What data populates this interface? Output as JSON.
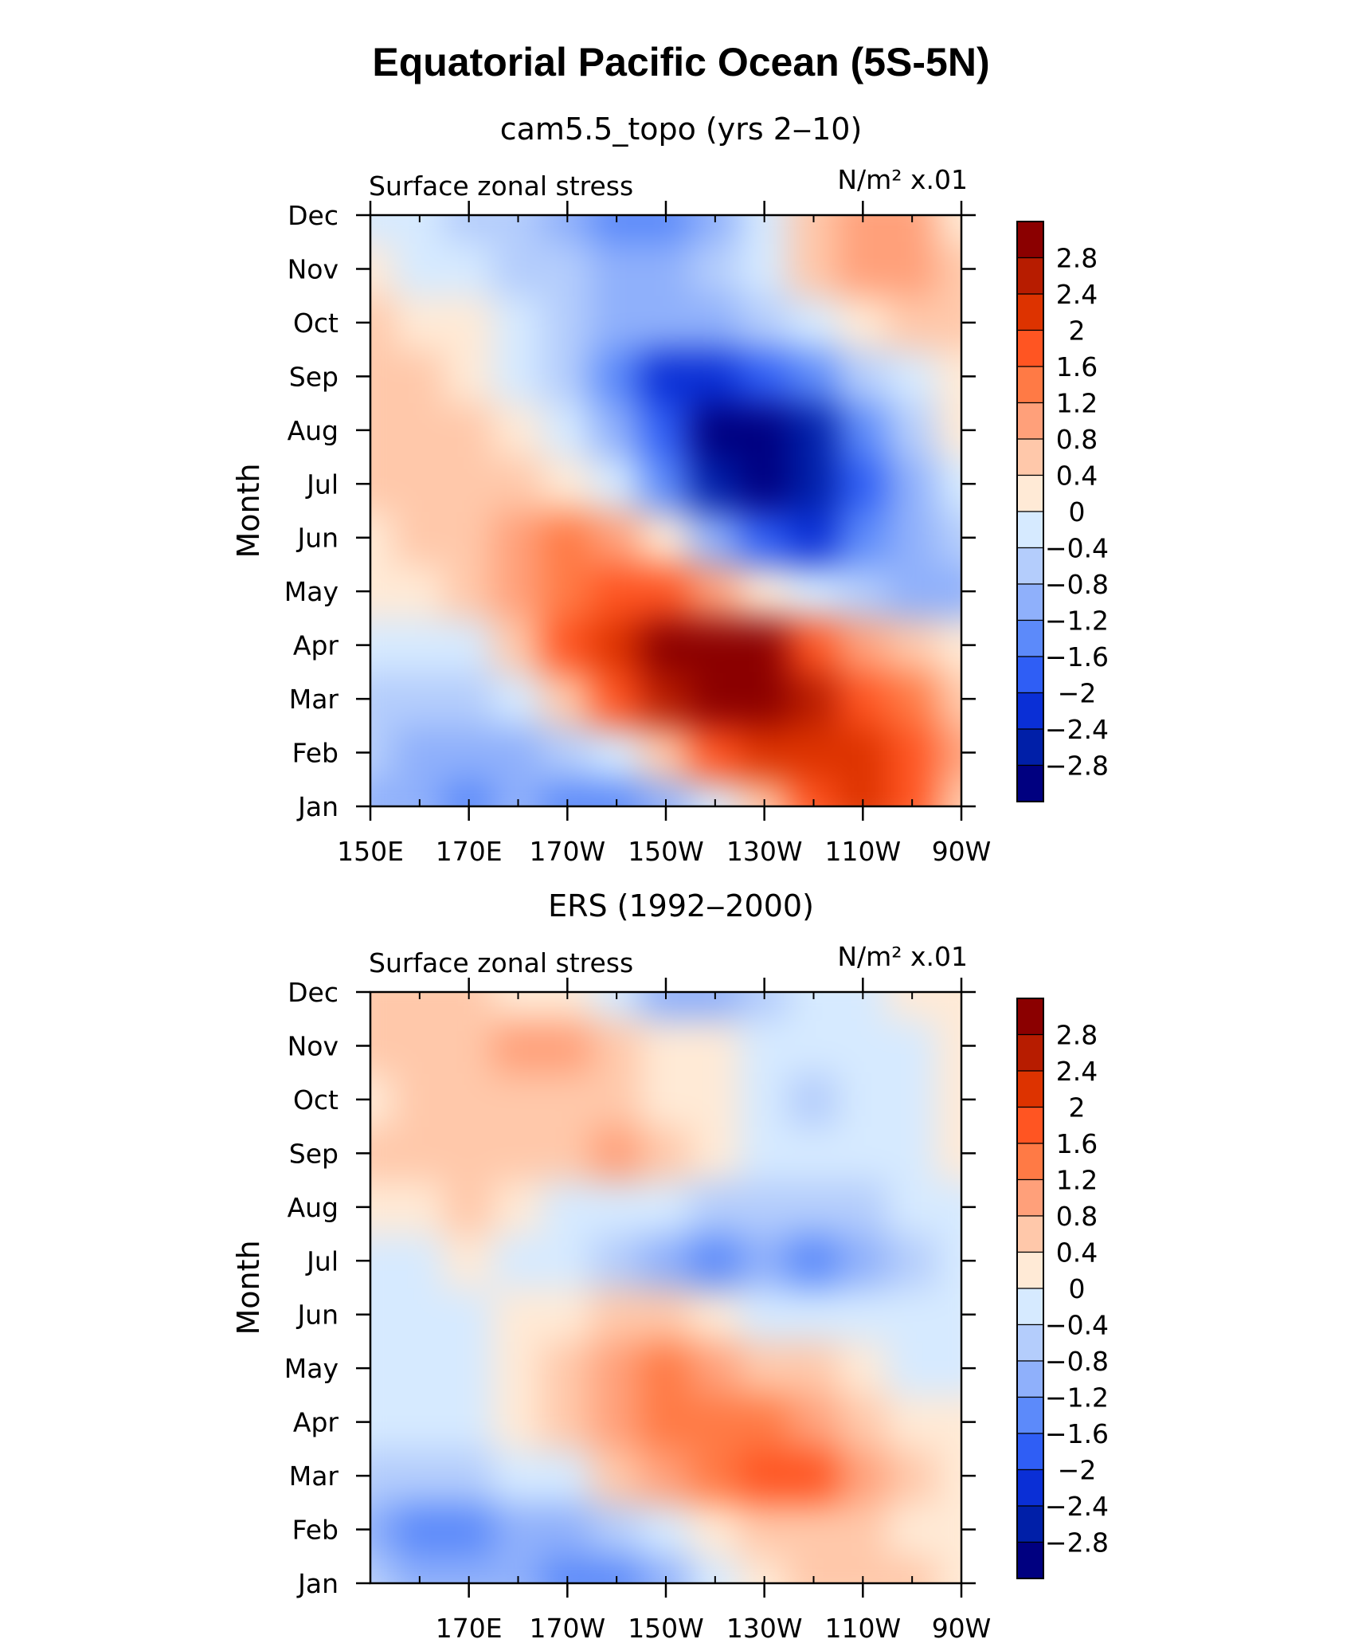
{
  "title": "Equatorial Pacific Ocean (5S-5N)",
  "colorbar": {
    "labels": [
      "2.8",
      "2.4",
      "2",
      "1.6",
      "1.2",
      "0.8",
      "0.4",
      "0",
      "−0.4",
      "−0.8",
      "−1.2",
      "−1.6",
      "−2",
      "−2.4",
      "−2.8"
    ],
    "colors": [
      "#8b0000",
      "#b71c00",
      "#dd3300",
      "#ff5522",
      "#ff7a45",
      "#ffa07a",
      "#ffc8aa",
      "#ffead6",
      "#d6eaff",
      "#b4cdfc",
      "#8fb0fb",
      "#5c8afa",
      "#2f5ef5",
      "#0a2fd6",
      "#001fa8",
      "#000080"
    ]
  },
  "chart_data": [
    {
      "type": "heatmap",
      "title": "cam5.5_topo (yrs 2‒10)",
      "left_label": "Surface zonal stress",
      "right_label": "N/m² x.01",
      "ylabel": "Month",
      "y_ticks": [
        "Jan",
        "Feb",
        "Mar",
        "Apr",
        "May",
        "Jun",
        "Jul",
        "Aug",
        "Sep",
        "Oct",
        "Nov",
        "Dec"
      ],
      "x_ticks": [
        "150E",
        "170E",
        "170W",
        "150W",
        "130W",
        "110W",
        "90W"
      ],
      "x": [
        "150E",
        "160E",
        "170E",
        "180",
        "170W",
        "160W",
        "150W",
        "140W",
        "130W",
        "120W",
        "110W",
        "100W",
        "90W"
      ],
      "y": [
        "Jan",
        "Feb",
        "Mar",
        "Apr",
        "May",
        "Jun",
        "Jul",
        "Aug",
        "Sep",
        "Oct",
        "Nov",
        "Dec"
      ],
      "values": [
        [
          -1.0,
          -1.2,
          -1.6,
          -1.2,
          -1.6,
          -1.6,
          -1.2,
          -0.4,
          0.4,
          1.6,
          2.0,
          1.6,
          0.4
        ],
        [
          -0.8,
          -1.0,
          -1.0,
          -1.2,
          -0.8,
          -0.4,
          0.4,
          1.6,
          2.0,
          2.2,
          2.2,
          1.6,
          0.8
        ],
        [
          -0.6,
          -0.6,
          -0.8,
          -0.4,
          0.4,
          1.6,
          2.4,
          2.8,
          3.0,
          2.6,
          1.6,
          1.2,
          0.4
        ],
        [
          -0.2,
          -0.2,
          -0.2,
          0.4,
          1.6,
          2.0,
          2.8,
          3.0,
          2.8,
          1.6,
          0.8,
          0.6,
          0.0
        ],
        [
          0.0,
          0.2,
          0.4,
          0.8,
          1.2,
          1.6,
          1.6,
          0.8,
          0.0,
          -0.4,
          -0.8,
          -1.2,
          -1.0
        ],
        [
          0.2,
          0.4,
          0.6,
          0.8,
          1.2,
          0.8,
          0.0,
          -1.2,
          -2.0,
          -2.4,
          -1.6,
          -1.2,
          -0.8
        ],
        [
          0.4,
          0.6,
          0.6,
          0.4,
          0.0,
          -0.4,
          -1.6,
          -2.8,
          -3.2,
          -2.8,
          -2.0,
          -1.2,
          -0.4
        ],
        [
          0.6,
          0.6,
          0.4,
          0.0,
          -0.4,
          -1.2,
          -2.0,
          -3.0,
          -3.2,
          -2.8,
          -1.6,
          -0.8,
          0.0
        ],
        [
          0.6,
          0.4,
          0.2,
          -0.4,
          -0.8,
          -1.6,
          -2.4,
          -2.4,
          -2.0,
          -1.6,
          -0.8,
          -0.2,
          0.2
        ],
        [
          0.4,
          0.2,
          0.0,
          -0.4,
          -0.8,
          -1.2,
          -1.2,
          -1.2,
          -0.8,
          -0.4,
          0.0,
          0.4,
          0.4
        ],
        [
          0.0,
          -0.2,
          -0.4,
          -0.6,
          -0.8,
          -1.2,
          -1.2,
          -0.8,
          -0.4,
          0.4,
          0.8,
          0.8,
          0.4
        ],
        [
          -0.2,
          -0.4,
          -0.6,
          -0.8,
          -1.2,
          -1.6,
          -1.6,
          -1.2,
          -0.4,
          0.4,
          1.0,
          0.8,
          0.2
        ]
      ]
    },
    {
      "type": "heatmap",
      "title": "ERS (1992‒2000)",
      "left_label": "Surface zonal stress",
      "right_label": "N/m² x.01",
      "ylabel": "Month",
      "y_ticks": [
        "Jan",
        "Feb",
        "Mar",
        "Apr",
        "May",
        "Jun",
        "Jul",
        "Aug",
        "Sep",
        "Oct",
        "Nov",
        "Dec"
      ],
      "x_ticks": [
        "170E",
        "170W",
        "150W",
        "130W",
        "110W",
        "90W"
      ],
      "x": [
        "150E",
        "160E",
        "170E",
        "180",
        "170W",
        "160W",
        "150W",
        "140W",
        "130W",
        "120W",
        "110W",
        "100W",
        "90W"
      ],
      "y": [
        "Jan",
        "Feb",
        "Mar",
        "Apr",
        "May",
        "Jun",
        "Jul",
        "Aug",
        "Sep",
        "Oct",
        "Nov",
        "Dec"
      ],
      "values": [
        [
          -0.8,
          -1.0,
          -1.2,
          -1.2,
          -1.6,
          -1.4,
          -1.0,
          -0.4,
          0.0,
          0.4,
          0.4,
          0.4,
          0.0
        ],
        [
          -1.2,
          -1.4,
          -1.6,
          -1.2,
          -1.2,
          -0.8,
          -0.4,
          0.0,
          0.4,
          0.4,
          0.4,
          0.2,
          0.0
        ],
        [
          -0.6,
          -0.8,
          -0.6,
          -0.4,
          -0.2,
          0.4,
          0.8,
          1.2,
          1.6,
          1.6,
          0.8,
          0.4,
          0.0
        ],
        [
          -0.2,
          -0.2,
          -0.2,
          0.0,
          0.4,
          0.8,
          1.2,
          1.4,
          1.2,
          0.8,
          0.4,
          0.2,
          0.0
        ],
        [
          -0.2,
          -0.2,
          -0.2,
          0.0,
          0.4,
          0.8,
          1.2,
          1.0,
          0.6,
          0.4,
          0.0,
          -0.2,
          -0.2
        ],
        [
          -0.4,
          -0.2,
          -0.2,
          0.0,
          0.2,
          0.4,
          0.4,
          0.0,
          -0.2,
          -0.4,
          -0.4,
          -0.4,
          -0.2
        ],
        [
          -0.2,
          -0.2,
          0.0,
          -0.2,
          -0.4,
          -0.8,
          -1.2,
          -1.6,
          -1.2,
          -1.6,
          -1.2,
          -0.8,
          -0.4
        ],
        [
          0.2,
          0.2,
          0.4,
          0.0,
          -0.2,
          -0.4,
          -0.4,
          -0.8,
          -0.8,
          -0.8,
          -0.6,
          -0.4,
          -0.2
        ],
        [
          0.4,
          0.4,
          0.4,
          0.4,
          0.4,
          0.8,
          0.4,
          0.0,
          -0.2,
          -0.4,
          -0.4,
          -0.2,
          0.0
        ],
        [
          0.2,
          0.4,
          0.4,
          0.4,
          0.4,
          0.4,
          0.2,
          0.0,
          -0.4,
          -0.6,
          -0.4,
          -0.2,
          0.0
        ],
        [
          0.4,
          0.4,
          0.4,
          0.8,
          0.8,
          0.4,
          0.2,
          0.0,
          -0.2,
          -0.4,
          -0.4,
          -0.2,
          0.0
        ],
        [
          0.4,
          0.4,
          0.4,
          0.2,
          0.0,
          -0.4,
          -1.2,
          -1.2,
          -0.8,
          -0.4,
          -0.2,
          0.0,
          0.0
        ]
      ]
    }
  ]
}
